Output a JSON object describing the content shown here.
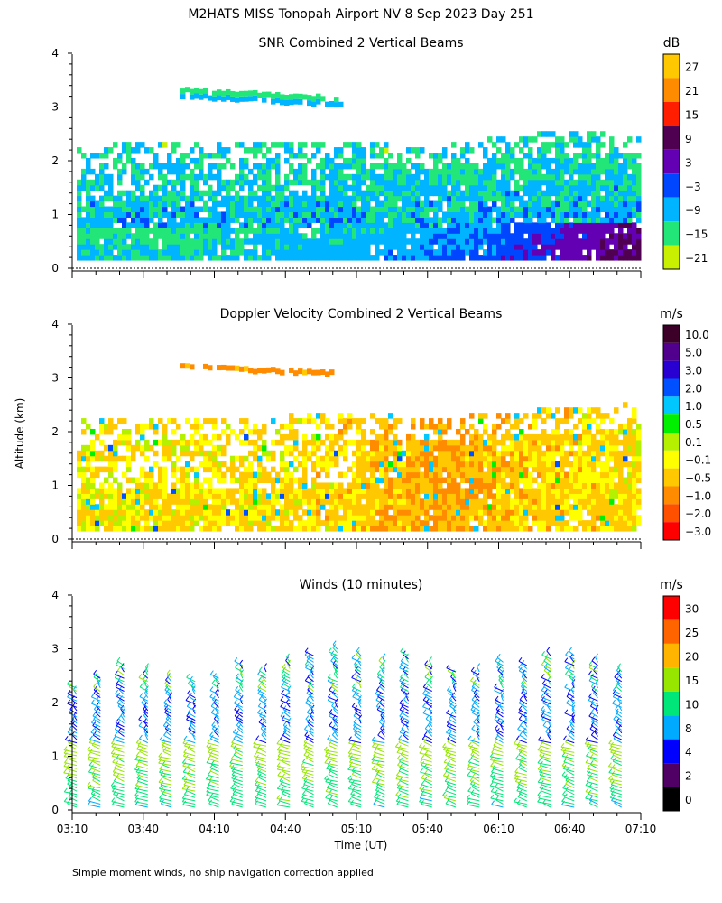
{
  "title": "M2HATS MISS Tonopah Airport NV   8 Sep 2023 Day 251",
  "ylabel": "Altitude (km)",
  "xlabel": "Time (UT)",
  "footnote": "Simple moment winds, no ship navigation correction applied",
  "x_ticks": [
    "03:10",
    "03:40",
    "04:10",
    "04:40",
    "05:10",
    "05:40",
    "06:10",
    "06:40",
    "07:10"
  ],
  "y_ticks": [
    "0",
    "1",
    "2",
    "3",
    "4"
  ],
  "chart_data": [
    {
      "type": "heatmap",
      "title": "SNR Combined 2 Vertical Beams",
      "units": "dB",
      "xlabel": "Time (UT)",
      "ylabel": "Altitude (km)",
      "xlim": [
        "03:10",
        "07:10"
      ],
      "ylim": [
        0,
        4
      ],
      "colorbar_labels": [
        "27",
        "21",
        "15",
        "9",
        "3",
        "−3",
        "−9",
        "−15",
        "−21"
      ],
      "colorbar_colors": [
        "#ffc800",
        "#ff8c00",
        "#ff1e00",
        "#500050",
        "#6400b4",
        "#0046ff",
        "#00b4ff",
        "#23e678",
        "#c8f000"
      ],
      "profile": [
        {
          "t": "03:10",
          "top_km": 2.0,
          "core_db": -12
        },
        {
          "t": "03:40",
          "top_km": 2.1,
          "core_db": -12
        },
        {
          "t": "04:10",
          "top_km": 2.1,
          "core_db": -12
        },
        {
          "t": "04:40",
          "top_km": 2.1,
          "core_db": -9
        },
        {
          "t": "05:10",
          "top_km": 2.1,
          "core_db": -9
        },
        {
          "t": "05:40",
          "top_km": 2.0,
          "core_db": -6
        },
        {
          "t": "06:10",
          "top_km": 2.2,
          "core_db": -3
        },
        {
          "t": "06:40",
          "top_km": 2.3,
          "core_db": 3
        },
        {
          "t": "07:10",
          "top_km": 2.3,
          "core_db": 9
        }
      ]
    },
    {
      "type": "heatmap",
      "title": "Doppler Velocity Combined 2 Vertical Beams",
      "units": "m/s",
      "xlabel": "Time (UT)",
      "ylabel": "Altitude (km)",
      "xlim": [
        "03:10",
        "07:10"
      ],
      "ylim": [
        0,
        4
      ],
      "colorbar_labels": [
        "10.0",
        "5.0",
        "3.0",
        "2.0",
        "1.0",
        "0.5",
        "0.1",
        "−0.1",
        "−0.5",
        "−1.0",
        "−2.0",
        "−3.0"
      ],
      "colorbar_colors": [
        "#3c0028",
        "#50008c",
        "#2800d2",
        "#0050ff",
        "#00c8ff",
        "#00f000",
        "#b4f000",
        "#ffff00",
        "#ffc800",
        "#ff8c00",
        "#ff5000",
        "#ff0000"
      ],
      "profile": [
        {
          "t": "03:10",
          "top_km": 2.0,
          "velocity_ms": -0.2
        },
        {
          "t": "04:10",
          "top_km": 2.0,
          "velocity_ms": -0.3
        },
        {
          "t": "05:10",
          "top_km": 2.1,
          "velocity_ms": -0.4
        },
        {
          "t": "05:40",
          "top_km": 2.0,
          "velocity_ms": -0.8
        },
        {
          "t": "06:10",
          "top_km": 2.1,
          "velocity_ms": -0.5
        },
        {
          "t": "07:10",
          "top_km": 2.3,
          "velocity_ms": -0.3
        }
      ]
    },
    {
      "type": "scatter",
      "title": "Winds (10 minutes)",
      "units": "m/s",
      "xlabel": "Time (UT)",
      "ylabel": "Altitude (km)",
      "xlim": [
        "03:10",
        "07:10"
      ],
      "ylim": [
        0,
        4
      ],
      "colorbar_labels": [
        "30",
        "25",
        "20",
        "15",
        "10",
        "8",
        "4",
        "2",
        "0"
      ],
      "colorbar_colors": [
        "#ff0000",
        "#ff6400",
        "#ffb400",
        "#96e600",
        "#00e678",
        "#00aaff",
        "#0000ff",
        "#500064",
        "#000000"
      ],
      "profile_times": [
        "03:10",
        "03:20",
        "03:30",
        "03:40",
        "03:50",
        "04:00",
        "04:10",
        "04:20",
        "04:30",
        "04:40",
        "04:50",
        "05:00",
        "05:10",
        "05:20",
        "05:30",
        "05:40",
        "05:50",
        "06:00",
        "06:10",
        "06:20",
        "06:30",
        "06:40",
        "06:50",
        "07:00"
      ],
      "profile_tops_km": [
        2.3,
        2.5,
        2.7,
        2.6,
        2.5,
        2.4,
        2.5,
        2.7,
        2.6,
        2.8,
        2.9,
        3.0,
        2.9,
        2.8,
        2.9,
        2.7,
        2.6,
        2.6,
        2.8,
        2.7,
        2.9,
        2.9,
        2.8,
        2.6
      ]
    }
  ]
}
